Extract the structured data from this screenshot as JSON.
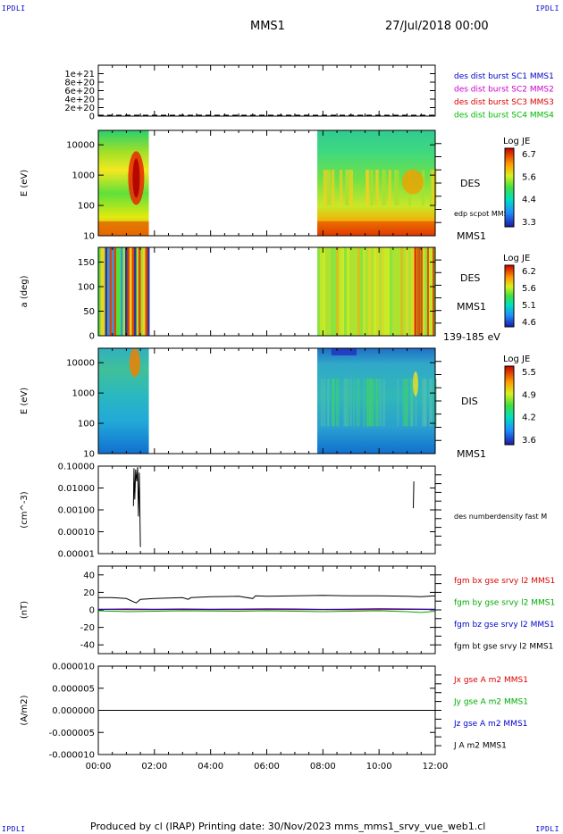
{
  "corner_labels": {
    "top_left": "IPDLI",
    "top_right": "IPDLI",
    "bottom_left": "IPDLI",
    "bottom_right": "IPDLI"
  },
  "header": {
    "spacecraft": "MMS1",
    "datetime": "27/Jul/2018 00:00"
  },
  "footer": {
    "text": "Produced by cl (IRAP)   Printing date: 30/Nov/2023   mms_mms1_srvy_vue_web1.cl"
  },
  "x_axis": {
    "ticks": [
      "00:00",
      "02:00",
      "04:00",
      "06:00",
      "08:00",
      "10:00",
      "12:00"
    ],
    "range_hours": [
      0,
      12
    ]
  },
  "chart_data": [
    {
      "type": "line",
      "title": "",
      "ylabel": "",
      "ylim": [
        0,
        1.2e+21
      ],
      "yticks": [
        "0",
        "2e+20",
        "4e+20",
        "6e+20",
        "8e+20",
        "1e+21"
      ],
      "yticks_values": [
        0,
        2e+20,
        4e+20,
        6e+20,
        8e+20,
        1e+21
      ],
      "series": [
        {
          "name": "des dist burst SC1 MMS1",
          "color": "#0000cc"
        },
        {
          "name": "des dist burst SC2 MMS2",
          "color": "#cc00cc"
        },
        {
          "name": "des dist burst SC3 MMS3",
          "color": "#dd0000"
        },
        {
          "name": "des dist burst SC4 MMS4",
          "color": "#00bb00"
        }
      ]
    },
    {
      "type": "heatmap",
      "ylabel": "E (eV)",
      "yscale": "log",
      "ylim": [
        10,
        30000
      ],
      "yticks": [
        "10",
        "100",
        "1000",
        "10000"
      ],
      "yticks_values": [
        10,
        100,
        1000,
        10000
      ],
      "data_intervals_hours": [
        [
          0,
          1.8
        ],
        [
          7.8,
          12
        ]
      ],
      "label": "DES",
      "sublabel": "MMS1",
      "line_label": "edp scpot MMS1",
      "colorbar": {
        "title": "Log JE",
        "ticks": [
          "6.7",
          "5.6",
          "4.4",
          "3.3"
        ]
      }
    },
    {
      "type": "heatmap",
      "ylabel": "a (deg)",
      "yscale": "linear",
      "ylim": [
        0,
        180
      ],
      "yticks": [
        "0",
        "50",
        "100",
        "150"
      ],
      "yticks_values": [
        0,
        50,
        100,
        150
      ],
      "data_intervals_hours": [
        [
          0,
          1.8
        ],
        [
          7.8,
          12
        ]
      ],
      "label": "DES",
      "sublabel": "MMS1",
      "energy_range": "139-185 eV",
      "colorbar": {
        "title": "Log JE",
        "ticks": [
          "6.2",
          "5.6",
          "5.1",
          "4.6"
        ]
      }
    },
    {
      "type": "heatmap",
      "ylabel": "E (eV)",
      "yscale": "log",
      "ylim": [
        10,
        30000
      ],
      "yticks": [
        "10",
        "100",
        "1000",
        "10000"
      ],
      "yticks_values": [
        10,
        100,
        1000,
        10000
      ],
      "data_intervals_hours": [
        [
          0,
          1.8
        ],
        [
          7.8,
          12
        ]
      ],
      "label": "DIS",
      "sublabel": "MMS1",
      "colorbar": {
        "title": "Log JE",
        "ticks": [
          "5.5",
          "4.9",
          "4.2",
          "3.6"
        ]
      }
    },
    {
      "type": "line",
      "ylabel": "(cm^-3)",
      "yscale": "log",
      "ylim": [
        1e-05,
        0.1
      ],
      "yticks": [
        "0.00001",
        "0.00010",
        "0.00100",
        "0.01000",
        "0.10000"
      ],
      "yticks_values": [
        1e-05,
        0.0001,
        0.001,
        0.01,
        0.1
      ],
      "series": [
        {
          "name": "des numberdensity fast M",
          "color": "#000000",
          "segments": [
            [
              [
                1.25,
                0.0015
              ],
              [
                1.27,
                0.08
              ],
              [
                1.3,
                0.003
              ],
              [
                1.33,
                0.07
              ],
              [
                1.37,
                0.02
              ],
              [
                1.4,
                0.09
              ],
              [
                1.43,
                0.0005
              ],
              [
                1.46,
                0.05
              ],
              [
                1.5,
                2e-05
              ]
            ],
            [
              [
                11.22,
                0.0012
              ],
              [
                11.24,
                0.02
              ]
            ]
          ]
        }
      ]
    },
    {
      "type": "line",
      "ylabel": "(nT)",
      "ylim": [
        -50,
        50
      ],
      "yticks": [
        "-40",
        "-20",
        "0",
        "20",
        "40"
      ],
      "yticks_values": [
        -40,
        -20,
        0,
        20,
        40
      ],
      "series": [
        {
          "name": "fgm bx gse srvy l2 MMS1",
          "color": "#dd0000",
          "x": [
            0,
            1,
            2,
            3,
            4,
            5,
            6,
            7,
            8,
            9,
            10,
            11,
            12
          ],
          "y": [
            0.5,
            0.3,
            0.2,
            0.4,
            0.3,
            0.2,
            0.4,
            0.3,
            0.2,
            0.1,
            0.3,
            0.5,
            0.4
          ]
        },
        {
          "name": "fgm by gse srvy l2 MMS1",
          "color": "#00aa00",
          "x": [
            0,
            1,
            2,
            3,
            4,
            5,
            6,
            7,
            8,
            9,
            10,
            11,
            11.5,
            12
          ],
          "y": [
            -1,
            -2,
            -1.5,
            -1,
            -1.2,
            -1.5,
            -1,
            -1.5,
            -2,
            -1.5,
            -1,
            -2,
            -3,
            -1.5
          ]
        },
        {
          "name": "fgm bz gse srvy l2 MMS1",
          "color": "#0000cc",
          "x": [
            0,
            1,
            2,
            3,
            4,
            5,
            6,
            7,
            8,
            9,
            10,
            11,
            12
          ],
          "y": [
            0.8,
            1.0,
            0.8,
            1.0,
            0.7,
            0.9,
            1.1,
            1.0,
            0.6,
            0.9,
            1.2,
            1.0,
            0.8
          ]
        },
        {
          "name": "fgm bt gse srvy l2 MMS1",
          "color": "#000000",
          "x": [
            0,
            0.5,
            1,
            1.2,
            1.35,
            1.5,
            2,
            3,
            3.2,
            3.3,
            4,
            5,
            5.5,
            5.6,
            6,
            7,
            8,
            9,
            10,
            11,
            11.5,
            12
          ],
          "y": [
            14,
            14,
            13,
            10,
            8,
            12,
            13,
            14,
            12,
            14,
            15,
            15.5,
            13,
            16,
            15.5,
            16,
            16.5,
            16,
            16,
            15.5,
            15,
            16
          ]
        }
      ]
    },
    {
      "type": "line",
      "ylabel": "(A/m2)",
      "ylim": [
        -1e-05,
        1e-05
      ],
      "yticks": [
        "-0.000010",
        "-0.000005",
        "0.000000",
        "0.000005",
        "0.000010"
      ],
      "yticks_values": [
        -1e-05,
        -5e-06,
        0,
        5e-06,
        1e-05
      ],
      "series": [
        {
          "name": "Jx gse A m2 MMS1",
          "color": "#dd0000"
        },
        {
          "name": "Jy gse A m2 MMS1",
          "color": "#00aa00"
        },
        {
          "name": "Jz gse A m2 MMS1",
          "color": "#0000cc"
        },
        {
          "name": "J A m2 MMS1",
          "color": "#000000",
          "x": [
            0,
            12
          ],
          "y": [
            0,
            0
          ]
        }
      ]
    }
  ]
}
